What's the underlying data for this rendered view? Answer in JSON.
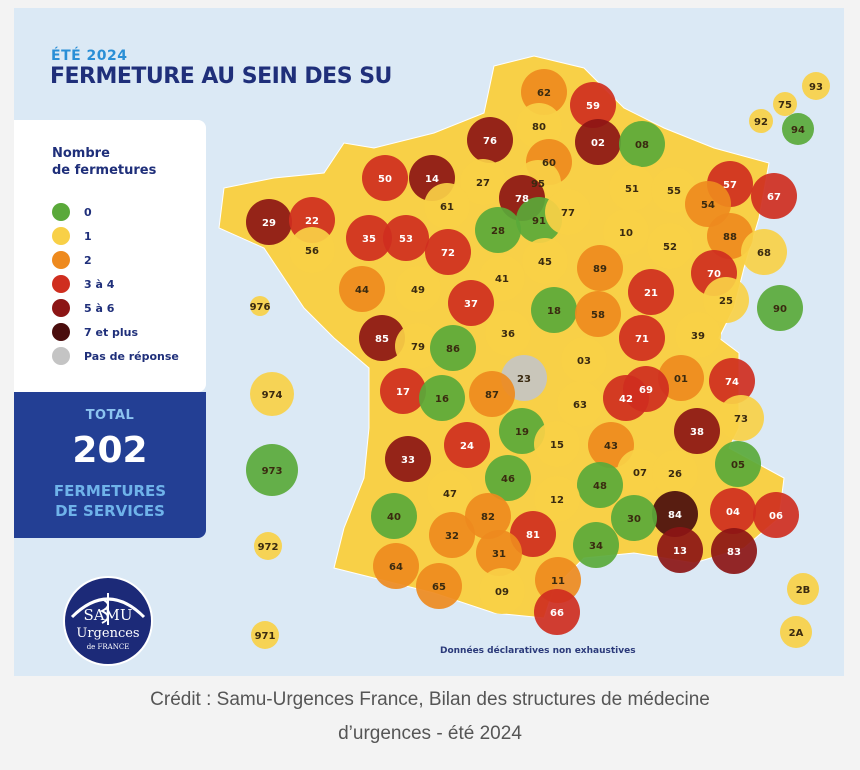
{
  "season": "ÉTÉ 2024",
  "title": "FERMETURE AU SEIN DES SU",
  "legend": {
    "title_line1": "Nombre",
    "title_line2": "de fermetures",
    "items": [
      {
        "label": "0",
        "color": "#5aa93a"
      },
      {
        "label": "1",
        "color": "#f8d047"
      },
      {
        "label": "2",
        "color": "#ee8a1e"
      },
      {
        "label": "3 à 4",
        "color": "#cf2e1f"
      },
      {
        "label": "5 à 6",
        "color": "#8c1515"
      },
      {
        "label": "7 et plus",
        "color": "#4a0d0d"
      },
      {
        "label": "Pas de réponse",
        "color": "#c4c4c4"
      }
    ]
  },
  "total": {
    "label": "TOTAL",
    "value": "202",
    "sub1": "FERMETURES",
    "sub2": "DE SERVICES"
  },
  "departments": [
    {
      "code": "62",
      "level": "2"
    },
    {
      "code": "59",
      "level": "3 à 4"
    },
    {
      "code": "80",
      "level": "1"
    },
    {
      "code": "02",
      "level": "5 à 6"
    },
    {
      "code": "08",
      "level": "0"
    },
    {
      "code": "76",
      "level": "5 à 6"
    },
    {
      "code": "60",
      "level": "2"
    },
    {
      "code": "50",
      "level": "3 à 4"
    },
    {
      "code": "14",
      "level": "5 à 6"
    },
    {
      "code": "27",
      "level": "1"
    },
    {
      "code": "95",
      "level": "1"
    },
    {
      "code": "78",
      "level": "5 à 6"
    },
    {
      "code": "91",
      "level": "0"
    },
    {
      "code": "77",
      "level": "1"
    },
    {
      "code": "51",
      "level": "1"
    },
    {
      "code": "55",
      "level": "1"
    },
    {
      "code": "57",
      "level": "3 à 4"
    },
    {
      "code": "67",
      "level": "3 à 4"
    },
    {
      "code": "54",
      "level": "2"
    },
    {
      "code": "88",
      "level": "2"
    },
    {
      "code": "68",
      "level": "1"
    },
    {
      "code": "29",
      "level": "5 à 6"
    },
    {
      "code": "22",
      "level": "3 à 4"
    },
    {
      "code": "35",
      "level": "3 à 4"
    },
    {
      "code": "53",
      "level": "3 à 4"
    },
    {
      "code": "61",
      "level": "1"
    },
    {
      "code": "28",
      "level": "0"
    },
    {
      "code": "10",
      "level": "1"
    },
    {
      "code": "52",
      "level": "1"
    },
    {
      "code": "56",
      "level": "1"
    },
    {
      "code": "72",
      "level": "3 à 4"
    },
    {
      "code": "45",
      "level": "1"
    },
    {
      "code": "89",
      "level": "2"
    },
    {
      "code": "70",
      "level": "3 à 4"
    },
    {
      "code": "90",
      "level": "0"
    },
    {
      "code": "44",
      "level": "2"
    },
    {
      "code": "49",
      "level": "1"
    },
    {
      "code": "41",
      "level": "1"
    },
    {
      "code": "37",
      "level": "3 à 4"
    },
    {
      "code": "21",
      "level": "3 à 4"
    },
    {
      "code": "25",
      "level": "1"
    },
    {
      "code": "18",
      "level": "0"
    },
    {
      "code": "58",
      "level": "2"
    },
    {
      "code": "85",
      "level": "5 à 6"
    },
    {
      "code": "79",
      "level": "1"
    },
    {
      "code": "86",
      "level": "0"
    },
    {
      "code": "36",
      "level": "1"
    },
    {
      "code": "71",
      "level": "3 à 4"
    },
    {
      "code": "39",
      "level": "1"
    },
    {
      "code": "03",
      "level": "1"
    },
    {
      "code": "23",
      "level": "Pas de réponse"
    },
    {
      "code": "01",
      "level": "2"
    },
    {
      "code": "74",
      "level": "3 à 4"
    },
    {
      "code": "17",
      "level": "3 à 4"
    },
    {
      "code": "87",
      "level": "2"
    },
    {
      "code": "16",
      "level": "0"
    },
    {
      "code": "42",
      "level": "3 à 4"
    },
    {
      "code": "69",
      "level": "3 à 4"
    },
    {
      "code": "63",
      "level": "1"
    },
    {
      "code": "73",
      "level": "1"
    },
    {
      "code": "38",
      "level": "5 à 6"
    },
    {
      "code": "24",
      "level": "3 à 4"
    },
    {
      "code": "19",
      "level": "0"
    },
    {
      "code": "15",
      "level": "1"
    },
    {
      "code": "43",
      "level": "2"
    },
    {
      "code": "33",
      "level": "5 à 6"
    },
    {
      "code": "05",
      "level": "0"
    },
    {
      "code": "07",
      "level": "1"
    },
    {
      "code": "26",
      "level": "1"
    },
    {
      "code": "46",
      "level": "0"
    },
    {
      "code": "47",
      "level": "1"
    },
    {
      "code": "48",
      "level": "0"
    },
    {
      "code": "12",
      "level": "1"
    },
    {
      "code": "40",
      "level": "0"
    },
    {
      "code": "82",
      "level": "2"
    },
    {
      "code": "84",
      "level": "7 et plus"
    },
    {
      "code": "04",
      "level": "3 à 4"
    },
    {
      "code": "06",
      "level": "3 à 4"
    },
    {
      "code": "30",
      "level": "0"
    },
    {
      "code": "81",
      "level": "3 à 4"
    },
    {
      "code": "32",
      "level": "2"
    },
    {
      "code": "34",
      "level": "0"
    },
    {
      "code": "13",
      "level": "5 à 6"
    },
    {
      "code": "83",
      "level": "5 à 6"
    },
    {
      "code": "31",
      "level": "2"
    },
    {
      "code": "64",
      "level": "2"
    },
    {
      "code": "65",
      "level": "2"
    },
    {
      "code": "09",
      "level": "1"
    },
    {
      "code": "11",
      "level": "2"
    },
    {
      "code": "66",
      "level": "3 à 4"
    },
    {
      "code": "2B",
      "level": "1"
    },
    {
      "code": "2A",
      "level": "1"
    },
    {
      "code": "93",
      "level": "1"
    },
    {
      "code": "75",
      "level": "1"
    },
    {
      "code": "92",
      "level": "1"
    },
    {
      "code": "94",
      "level": "0"
    },
    {
      "code": "976",
      "level": "1"
    },
    {
      "code": "974",
      "level": "1"
    },
    {
      "code": "973",
      "level": "0"
    },
    {
      "code": "972",
      "level": "1"
    },
    {
      "code": "971",
      "level": "1"
    }
  ],
  "footnote": "Données déclaratives non exhaustives",
  "logo": {
    "text1": "SAMU",
    "text2": "Urgences",
    "text3": "de FRANCE"
  },
  "caption": {
    "line1": "Crédit : Samu-Urgences France, Bilan des structures de médecine",
    "line2": "d’urgences - été 2024"
  }
}
